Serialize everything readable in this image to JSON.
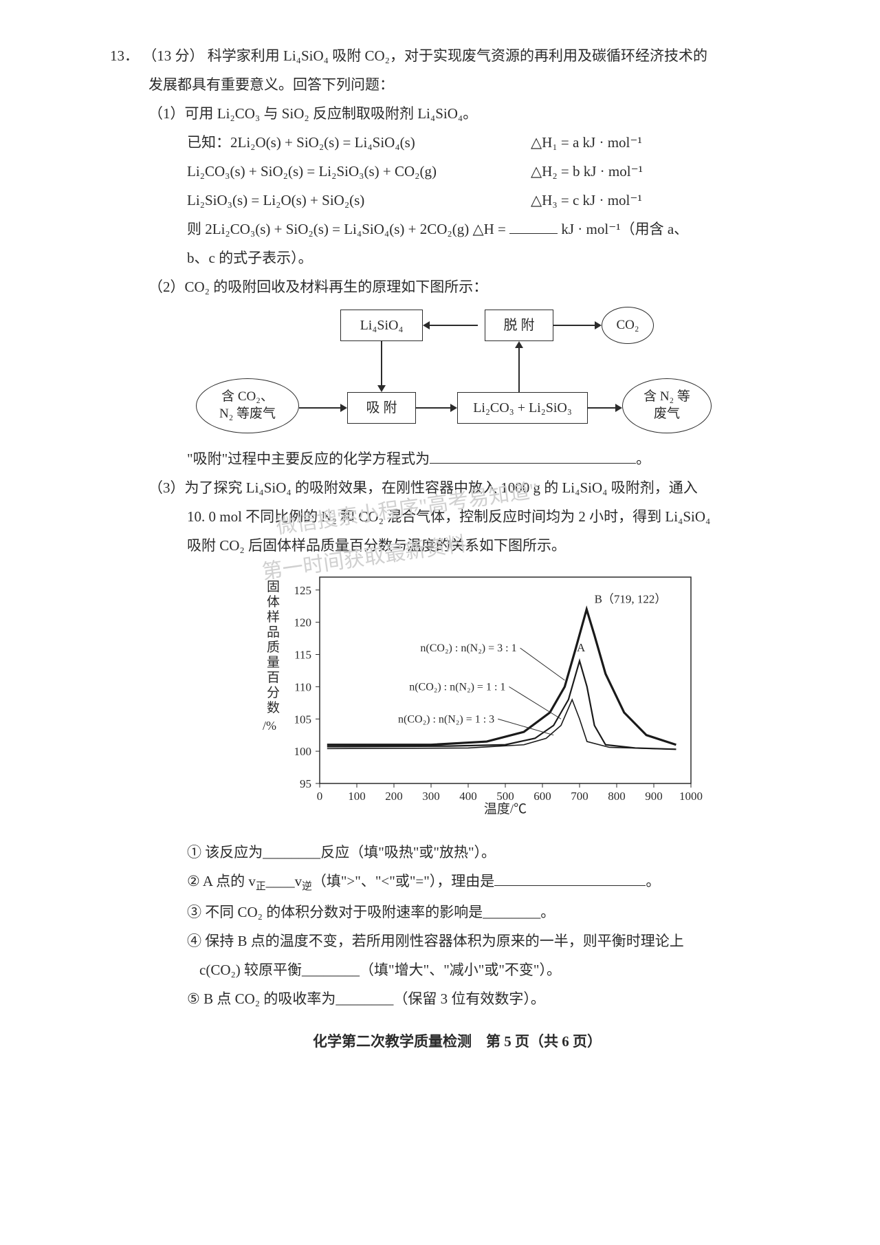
{
  "question": {
    "number": "13．",
    "points": "（13 分）",
    "intro_l1": "科学家利用 Li₄SiO₄ 吸附 CO₂，对于实现废气资源的再利用及碳循环经济技术的",
    "intro_l2": "发展都具有重要意义。回答下列问题："
  },
  "part1": {
    "label": "（1）可用 Li₂CO₃ 与 SiO₂ 反应制取吸附剂 Li₄SiO₄。",
    "known": "已知：2Li₂O(s) + SiO₂(s) = Li₄SiO₄(s)",
    "dh1": "△H₁ = a kJ · mol⁻¹",
    "eq2": "Li₂CO₃(s) + SiO₂(s) = Li₂SiO₃(s) + CO₂(g)",
    "dh2": "△H₂ = b kJ · mol⁻¹",
    "eq3": "Li₂SiO₃(s) = Li₂O(s) + SiO₂(s)",
    "dh3": "△H₃ = c kJ · mol⁻¹",
    "eq4_l": "则 2Li₂CO₃(s) + SiO₂(s) = Li₄SiO₄(s) + 2CO₂(g)    △H = ",
    "eq4_r": " kJ · mol⁻¹（用含 a、",
    "eq4_l2": "b、c 的式子表示）。"
  },
  "part2": {
    "label": "（2）CO₂ 的吸附回收及材料再生的原理如下图所示：",
    "node_li4sio4": "Li₄SiO₄",
    "node_desorb": "脱 附",
    "node_co2": "CO₂",
    "node_waste_in_1": "含 CO₂、",
    "node_waste_in_2": "N₂ 等废气",
    "node_absorb": "吸 附",
    "node_mix": "Li₂CO₃ + Li₂SiO₃",
    "node_waste_out_1": "含 N₂ 等",
    "node_waste_out_2": "废气",
    "caption": "\"吸附\"过程中主要反应的化学方程式为"
  },
  "part3": {
    "label_l1": "（3）为了探究 Li₄SiO₄ 的吸附效果，在刚性容器中放入 1000 g 的 Li₄SiO₄ 吸附剂，通入",
    "label_l2": "10. 0 mol 不同比例的 N₂ 和 CO₂ 混合气体，控制反应时间均为 2 小时，得到 Li₄SiO₄",
    "label_l3": "吸附 CO₂ 后固体样品质量百分数与温度的关系如下图所示。",
    "sub1": "① 该反应为________反应（填\"吸热\"或\"放热\"）。",
    "sub2_a": "② A 点的 v",
    "sub2_zheng": "正",
    "sub2_b": "____v",
    "sub2_ni": "逆",
    "sub2_c": "（填\">\"、\"<\"或\"=\"），理由是",
    "sub3": "③ 不同 CO₂ 的体积分数对于吸附速率的影响是________。",
    "sub4_l1": "④ 保持 B 点的温度不变，若所用刚性容器体积为原来的一半，则平衡时理论上",
    "sub4_l2": "c(CO₂) 较原平衡________（填\"增大\"、\"减小\"或\"不变\"）。",
    "sub5": "⑤ B 点 CO₂ 的吸收率为________（保留 3 位有效数字）。"
  },
  "chart": {
    "ylabel_chars": [
      "固",
      "体",
      "样",
      "品",
      "质",
      "量",
      "百",
      "分",
      "数"
    ],
    "yunit": "/%",
    "xlabel": "温度/℃",
    "xticks": [
      0,
      100,
      200,
      300,
      400,
      500,
      600,
      700,
      800,
      900,
      1000
    ],
    "yticks": [
      95,
      100,
      105,
      110,
      115,
      120,
      125
    ],
    "ylim": [
      95,
      127
    ],
    "xlim": [
      0,
      1000
    ],
    "point_B": "B（719, 122）",
    "point_A": "A",
    "legend1": "n(CO₂) : n(N₂) = 3 : 1",
    "legend2": "n(CO₂) : n(N₂) = 1 : 1",
    "legend3": "n(CO₂) : n(N₂) = 1 : 3",
    "colors": {
      "axis": "#2b2b2b",
      "series": "#1a1a1a",
      "bg": "#ffffff"
    }
  },
  "watermarks": {
    "w1": "微信搜索小程序\"高考易知道\"",
    "w2": "第一时间获取最新资料"
  },
  "footer": "化学第二次教学质量检测　第 5 页（共 6 页）"
}
